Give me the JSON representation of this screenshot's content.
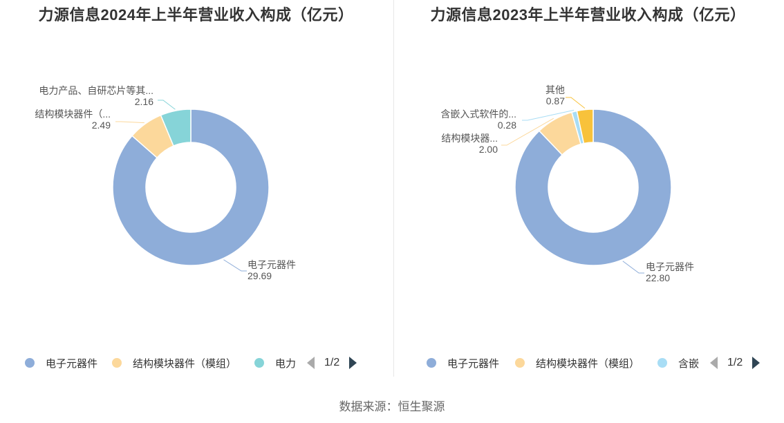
{
  "chart_data": [
    {
      "type": "pie",
      "title": "力源信息2024年上半年营业收入构成（亿元）",
      "series": [
        {
          "name": "电子元器件",
          "display_label": "电子元器件",
          "value": 29.69,
          "display_value": "29.69",
          "color": "#8eadd9"
        },
        {
          "name": "结构模块器件（模组）",
          "display_label": "结构模块器件（...",
          "value": 2.49,
          "display_value": "2.49",
          "color": "#fcd89b"
        },
        {
          "name": "电力",
          "display_label": "电力产品、自研芯片等其...",
          "value": 2.16,
          "display_value": "2.16",
          "color": "#86d4d8"
        }
      ],
      "legend": {
        "items": [
          "电子元器件",
          "结构模块器件（模组）",
          "电力"
        ],
        "page": "1/2"
      }
    },
    {
      "type": "pie",
      "title": "力源信息2023年上半年营业收入构成（亿元）",
      "series": [
        {
          "name": "电子元器件",
          "display_label": "电子元器件",
          "value": 22.8,
          "display_value": "22.80",
          "color": "#8eadd9"
        },
        {
          "name": "结构模块器件（模组）",
          "display_label": "结构模块器...",
          "value": 2.0,
          "display_value": "2.00",
          "color": "#fcd89b"
        },
        {
          "name": "含嵌",
          "display_label": "含嵌入式软件的...",
          "value": 0.28,
          "display_value": "0.28",
          "color": "#a8ddf5"
        },
        {
          "name": "其他",
          "display_label": "其他",
          "value": 0.87,
          "display_value": "0.87",
          "color": "#f8c23b"
        }
      ],
      "legend": {
        "items": [
          "电子元器件",
          "结构模块器件（模组）",
          "含嵌"
        ],
        "page": "1/2"
      }
    }
  ],
  "source": "数据来源：恒生聚源"
}
